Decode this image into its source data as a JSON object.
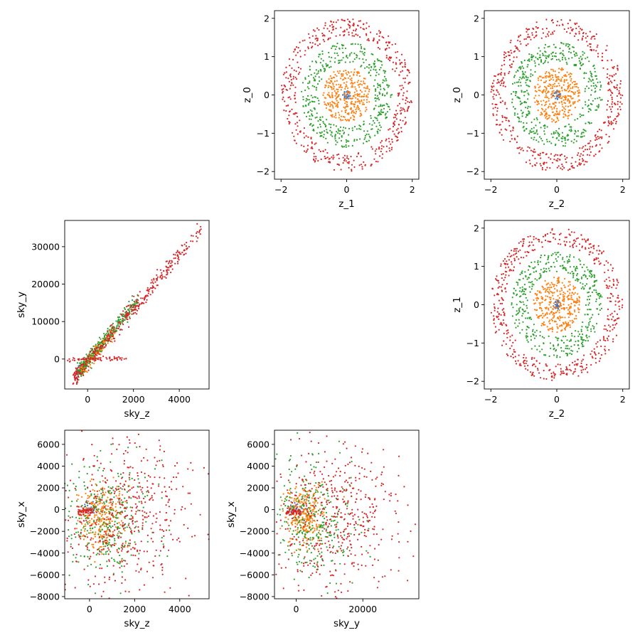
{
  "palette": {
    "series_colors": [
      "#4c72b0",
      "#ff7f0e",
      "#2ca02c",
      "#d62728"
    ]
  },
  "chart_data": [
    {
      "type": "scatter",
      "panel": "z_0-vs-z_1",
      "xlabel": "z_1",
      "ylabel": "z_0",
      "xlim": [
        -2.2,
        2.2
      ],
      "ylim": [
        -2.2,
        2.2
      ],
      "xticks": [
        -2,
        0,
        2
      ],
      "xtick_labels": [
        "−2",
        "0",
        "2"
      ],
      "yticks": [
        -2,
        -1,
        0,
        1,
        2
      ],
      "ytick_labels": [
        "−2",
        "−1",
        "0",
        "1",
        "2"
      ],
      "grid": false,
      "series": [
        {
          "distribution": "ring",
          "rmin": 0.0,
          "rmax": 0.12,
          "count": 30
        },
        {
          "distribution": "ring",
          "rmin": 0.0,
          "rmax": 0.72,
          "count": 320
        },
        {
          "distribution": "ring",
          "rmin": 0.85,
          "rmax": 1.38,
          "count": 420
        },
        {
          "distribution": "ring",
          "rmin": 1.55,
          "rmax": 2.0,
          "count": 480
        }
      ]
    },
    {
      "type": "scatter",
      "panel": "z_0-vs-z_2",
      "xlabel": "z_2",
      "ylabel": "z_0",
      "xlim": [
        -2.2,
        2.2
      ],
      "ylim": [
        -2.2,
        2.2
      ],
      "xticks": [
        -2,
        0,
        2
      ],
      "xtick_labels": [
        "−2",
        "0",
        "2"
      ],
      "yticks": [
        -2,
        -1,
        0,
        1,
        2
      ],
      "ytick_labels": [
        "−2",
        "−1",
        "0",
        "1",
        "2"
      ],
      "grid": false,
      "series": [
        {
          "distribution": "ring",
          "rmin": 0.0,
          "rmax": 0.12,
          "count": 30
        },
        {
          "distribution": "ring",
          "rmin": 0.0,
          "rmax": 0.72,
          "count": 320
        },
        {
          "distribution": "ring",
          "rmin": 0.85,
          "rmax": 1.38,
          "count": 420
        },
        {
          "distribution": "ring",
          "rmin": 1.55,
          "rmax": 2.0,
          "count": 480
        }
      ]
    },
    {
      "type": "scatter",
      "panel": "sky_y-vs-sky_z",
      "xlabel": "sky_z",
      "ylabel": "sky_y",
      "xlim": [
        -1000,
        5300
      ],
      "ylim": [
        -8000,
        37000
      ],
      "xticks": [
        0,
        2000,
        4000
      ],
      "xtick_labels": [
        "0",
        "2000",
        "4000"
      ],
      "yticks": [
        0,
        10000,
        20000,
        30000
      ],
      "ytick_labels": [
        "0",
        "10000",
        "20000",
        "30000"
      ],
      "grid": false,
      "series": [
        {
          "distribution": "band",
          "x0": -500,
          "y0": -4000,
          "x1": 100,
          "y1": 500,
          "spread": 600,
          "count": 25
        },
        {
          "distribution": "band",
          "x0": -300,
          "y0": -3000,
          "x1": 1200,
          "y1": 8000,
          "spread": 900,
          "count": 200
        },
        {
          "distribution": "band",
          "x0": -400,
          "y0": -3500,
          "x1": 2200,
          "y1": 16000,
          "spread": 1000,
          "count": 260
        },
        {
          "distribution": "band",
          "x0": -600,
          "y0": -5000,
          "x1": 4950,
          "y1": 34500,
          "spread": 1100,
          "count": 380
        },
        {
          "distribution": "hline",
          "x0": -900,
          "x1": 1700,
          "y": 0,
          "spread": 250,
          "count": 60
        }
      ]
    },
    {
      "type": "scatter",
      "panel": "z_1-vs-z_2",
      "xlabel": "z_2",
      "ylabel": "z_1",
      "xlim": [
        -2.2,
        2.2
      ],
      "ylim": [
        -2.2,
        2.2
      ],
      "xticks": [
        -2,
        0,
        2
      ],
      "xtick_labels": [
        "−2",
        "0",
        "2"
      ],
      "yticks": [
        -2,
        -1,
        0,
        1,
        2
      ],
      "ytick_labels": [
        "−2",
        "−1",
        "0",
        "1",
        "2"
      ],
      "grid": false,
      "series": [
        {
          "distribution": "ring",
          "rmin": 0.0,
          "rmax": 0.12,
          "count": 30
        },
        {
          "distribution": "ring",
          "rmin": 0.0,
          "rmax": 0.72,
          "count": 320
        },
        {
          "distribution": "ring",
          "rmin": 0.85,
          "rmax": 1.38,
          "count": 420
        },
        {
          "distribution": "ring",
          "rmin": 1.55,
          "rmax": 2.0,
          "count": 480
        }
      ]
    },
    {
      "type": "scatter",
      "panel": "sky_x-vs-sky_z",
      "xlabel": "sky_z",
      "ylabel": "sky_x",
      "xlim": [
        -1100,
        5300
      ],
      "ylim": [
        -8200,
        7300
      ],
      "xticks": [
        0,
        2000,
        4000
      ],
      "xtick_labels": [
        "0",
        "2000",
        "4000"
      ],
      "yticks": [
        -8000,
        -6000,
        -4000,
        -2000,
        0,
        2000,
        4000,
        6000
      ],
      "ytick_labels": [
        "−8000",
        "−6000",
        "−4000",
        "−2000",
        "0",
        "2000",
        "4000",
        "6000"
      ],
      "grid": false,
      "series": [
        {
          "distribution": "blob",
          "cx": 0,
          "cy": 0,
          "sx": 200,
          "sy": 300,
          "count": 25
        },
        {
          "distribution": "blob",
          "cx": 500,
          "cy": -600,
          "sx": 500,
          "sy": 1400,
          "count": 280
        },
        {
          "distribution": "blob",
          "cx": 700,
          "cy": -800,
          "sx": 1000,
          "sy": 2600,
          "count": 320
        },
        {
          "distribution": "blob",
          "cx": 1600,
          "cy": -700,
          "sx": 1500,
          "sy": 3600,
          "count": 500
        },
        {
          "distribution": "hline",
          "x0": -500,
          "x1": 200,
          "y": -200,
          "spread": 150,
          "count": 50
        }
      ]
    },
    {
      "type": "scatter",
      "panel": "sky_x-vs-sky_y",
      "xlabel": "sky_y",
      "ylabel": "sky_x",
      "xlim": [
        -6500,
        36800
      ],
      "ylim": [
        -8200,
        7300
      ],
      "xticks": [
        0,
        20000
      ],
      "xtick_labels": [
        "0",
        "20000"
      ],
      "yticks": [
        -8000,
        -6000,
        -4000,
        -2000,
        0,
        2000,
        4000,
        6000
      ],
      "ytick_labels": [
        "−8000",
        "−6000",
        "−4000",
        "−2000",
        "0",
        "2000",
        "4000",
        "6000"
      ],
      "grid": false,
      "series": [
        {
          "distribution": "blob",
          "cx": 0,
          "cy": 0,
          "sx": 1000,
          "sy": 300,
          "count": 25
        },
        {
          "distribution": "blob",
          "cx": 3000,
          "cy": -600,
          "sx": 3000,
          "sy": 1400,
          "count": 280
        },
        {
          "distribution": "blob",
          "cx": 5000,
          "cy": -800,
          "sx": 6000,
          "sy": 2600,
          "count": 320
        },
        {
          "distribution": "blob",
          "cx": 11000,
          "cy": -700,
          "sx": 10000,
          "sy": 3600,
          "count": 500
        },
        {
          "distribution": "hline",
          "x0": -3000,
          "x1": 1500,
          "y": -200,
          "spread": 150,
          "count": 50
        }
      ]
    }
  ]
}
